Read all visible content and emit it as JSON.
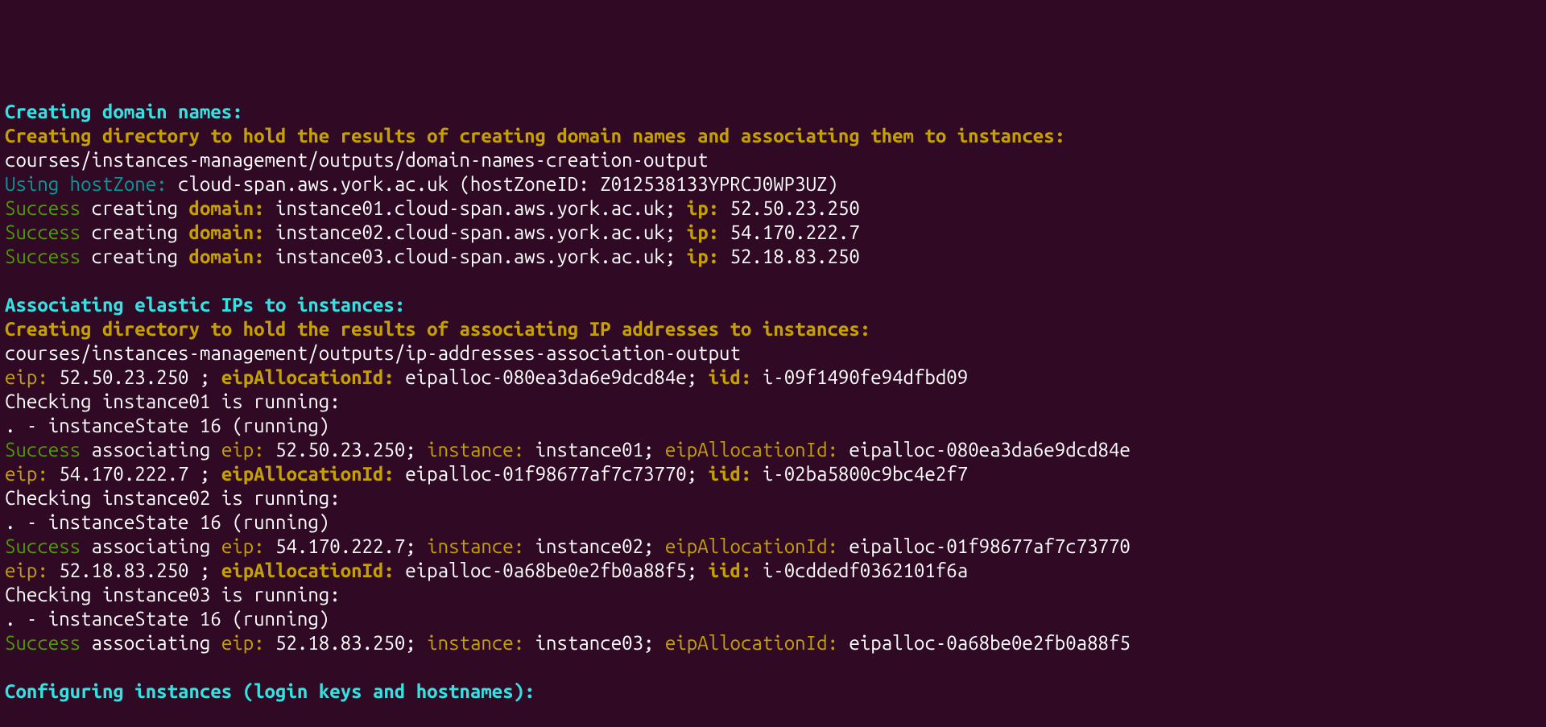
{
  "colors": {
    "bg": "#300a24",
    "white": "#ffffff",
    "cyan_bold": "#34e2e2",
    "cyan": "#06989a",
    "yellow_bold": "#c4a000",
    "yellow": "#c4a000",
    "green": "#4e9a06"
  },
  "sec1": {
    "heading": "Creating domain names:",
    "dir_line": "Creating directory to hold the results of creating domain names and associating them to instances:",
    "dir_path": "courses/instances-management/outputs/domain-names-creation-output",
    "hz_prefix": "Using hostZone:",
    "hz_rest": " cloud-span.aws.york.ac.uk (hostZoneID: Z012538133YPRCJ0WP3UZ)",
    "rows": [
      {
        "domain": " instance01.cloud-span.aws.york.ac.uk; ",
        "ip": " 52.50.23.250"
      },
      {
        "domain": " instance02.cloud-span.aws.york.ac.uk; ",
        "ip": " 54.170.222.7"
      },
      {
        "domain": " instance03.cloud-span.aws.york.ac.uk; ",
        "ip": " 52.18.83.250"
      }
    ],
    "lbl_success": "Success",
    "lbl_creating": " creating ",
    "lbl_domain": "domain:",
    "lbl_ip": "ip:"
  },
  "sec2": {
    "heading": "Associating elastic IPs to instances:",
    "dir_line": "Creating directory to hold the results of associating IP addresses to instances:",
    "dir_path": "courses/instances-management/outputs/ip-addresses-association-output",
    "lbl_eip": "eip:",
    "lbl_eip_bold": "eip:",
    "lbl_alloc": "eipAllocationId:",
    "lbl_iid": "iid:",
    "lbl_instance": "instance:",
    "lbl_success": "Success",
    "lbl_assoc": " associating ",
    "groups": [
      {
        "hdr_eip": " 52.50.23.250 ; ",
        "hdr_alloc": " eipalloc-080ea3da6e9dcd84e; ",
        "hdr_iid": " i-09f1490fe94dfbd09",
        "check": "Checking instance01 is running:",
        "state": ". - instanceState 16 (running)",
        "suc_eip": " 52.50.23.250; ",
        "suc_inst": " instance01; ",
        "suc_alloc": " eipalloc-080ea3da6e9dcd84e"
      },
      {
        "hdr_eip": " 54.170.222.7 ; ",
        "hdr_alloc": " eipalloc-01f98677af7c73770; ",
        "hdr_iid": " i-02ba5800c9bc4e2f7",
        "check": "Checking instance02 is running:",
        "state": ". - instanceState 16 (running)",
        "suc_eip": " 54.170.222.7; ",
        "suc_inst": " instance02; ",
        "suc_alloc": " eipalloc-01f98677af7c73770"
      },
      {
        "hdr_eip": " 52.18.83.250 ; ",
        "hdr_alloc": " eipalloc-0a68be0e2fb0a88f5; ",
        "hdr_iid": " i-0cddedf0362101f6a",
        "check": "Checking instance03 is running:",
        "state": ". - instanceState 16 (running)",
        "suc_eip": " 52.18.83.250; ",
        "suc_inst": " instance03; ",
        "suc_alloc": " eipalloc-0a68be0e2fb0a88f5"
      }
    ]
  },
  "sec3": {
    "heading": "Configuring instances (login keys and hostnames):"
  }
}
